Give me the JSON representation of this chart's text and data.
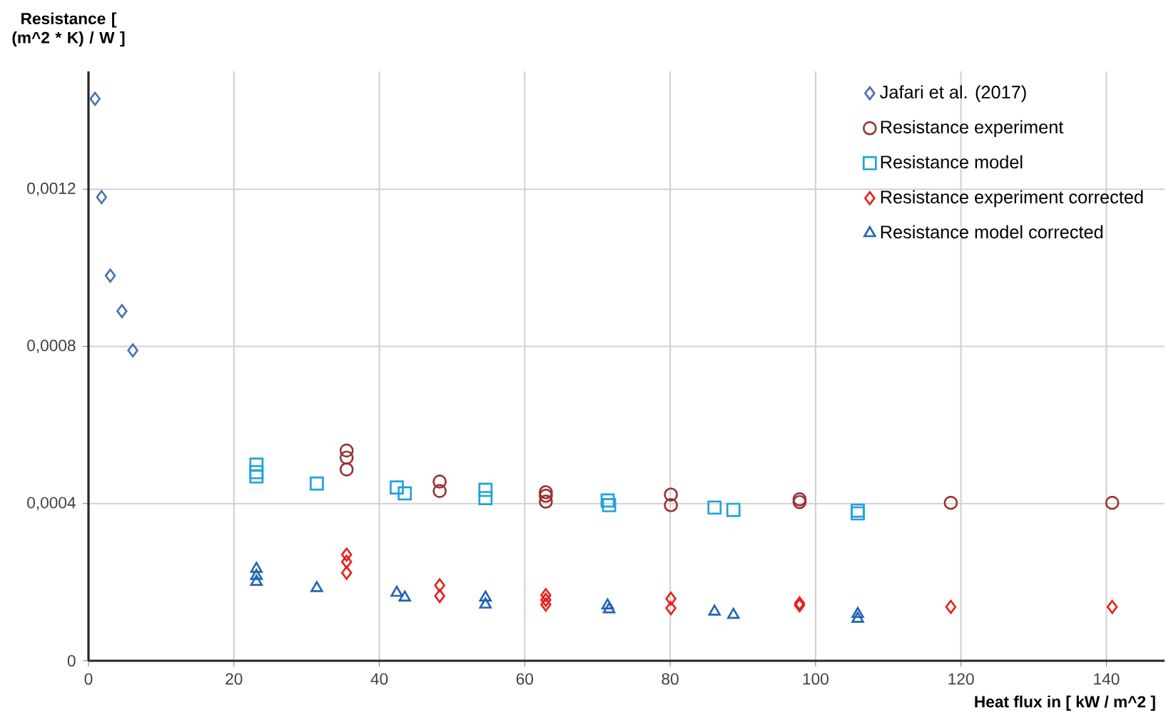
{
  "chart_data": {
    "type": "scatter",
    "xlabel": "Heat flux in [ kW / m^2 ]",
    "ylabel": "Resistance [ (m^2 * K) / W ]",
    "xlim": [
      0,
      148
    ],
    "xticks": [
      0,
      20,
      40,
      60,
      80,
      100,
      120,
      140
    ],
    "ylim": [
      0,
      0.0015
    ],
    "yticks": [
      0,
      {
        "value": 0.0004,
        "label": "0,0004"
      },
      {
        "value": 0.0008,
        "label": "0,0008"
      },
      {
        "value": 0.0012,
        "label": "0,0012"
      }
    ],
    "grid": true,
    "legend": "top right",
    "series": [
      {
        "name": "Jafari et al. (2017)",
        "color": "#4a72b0",
        "marker": "diamond",
        "x": [
          0.9,
          1.8,
          3.0,
          4.6,
          6.1
        ],
        "values": [
          0.00143,
          0.00118,
          0.00098,
          0.00089,
          0.00079
        ]
      },
      {
        "name": "Resistance experiment",
        "color": "#993333",
        "marker": "circle",
        "x": [
          35.5,
          35.5,
          35.5,
          48.3,
          48.3,
          62.9,
          62.9,
          62.9,
          80.1,
          80.1,
          97.8,
          97.8,
          118.6,
          140.8
        ],
        "values": [
          0.000535,
          0.000517,
          0.000487,
          0.000456,
          0.000432,
          0.000429,
          0.00042,
          0.000405,
          0.000423,
          0.000396,
          0.000411,
          0.000404,
          0.000402,
          0.000402
        ]
      },
      {
        "name": "Resistance model",
        "color": "#1fa2dc",
        "marker": "square",
        "x": [
          23.1,
          23.1,
          23.1,
          31.4,
          42.4,
          43.5,
          54.6,
          54.6,
          71.4,
          71.6,
          86.1,
          88.7,
          105.8,
          105.8
        ],
        "values": [
          0.000499,
          0.00048,
          0.000469,
          0.000451,
          0.000441,
          0.000426,
          0.000435,
          0.000414,
          0.000408,
          0.000396,
          0.00039,
          0.000384,
          0.000382,
          0.000375
        ]
      },
      {
        "name": "Resistance experiment corrected",
        "color": "#e8201e",
        "marker": "diamond",
        "x": [
          35.5,
          35.5,
          35.5,
          48.3,
          48.3,
          62.9,
          62.9,
          62.9,
          80.1,
          80.1,
          97.8,
          97.8,
          118.6,
          140.8
        ],
        "values": [
          0.00027,
          0.000252,
          0.000224,
          0.000192,
          0.000165,
          0.000167,
          0.000155,
          0.000143,
          0.000158,
          0.000134,
          0.000146,
          0.000141,
          0.000137,
          0.000137
        ]
      },
      {
        "name": "Resistance model corrected",
        "color": "#2166b0",
        "marker": "triangle",
        "x": [
          23.1,
          23.1,
          23.1,
          31.4,
          42.4,
          43.5,
          54.6,
          54.6,
          71.4,
          71.6,
          86.1,
          88.7,
          105.8,
          105.8
        ],
        "values": [
          0.000234,
          0.000216,
          0.000201,
          0.000185,
          0.000173,
          0.000161,
          0.000161,
          0.000143,
          0.000141,
          0.000131,
          0.000125,
          0.000117,
          0.000119,
          0.000107
        ]
      }
    ]
  }
}
